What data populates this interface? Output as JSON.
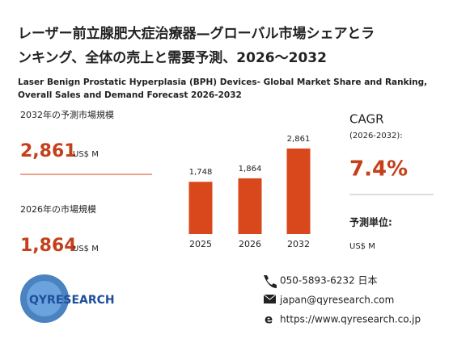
{
  "header": {
    "title_line1": "レーザー前立腺肥大症治療器—グローバル市場シェアとラ",
    "title_line2": "ンキング、全体の売上と需要予測、2026～2032",
    "subtitle_line1": "Laser Benign Prostatic Hyperplasia (BPH) Devices- Global Market Share and Ranking,",
    "subtitle_line2": "Overall Sales and Demand Forecast 2026-2032"
  },
  "left": {
    "forecast_label": "2032年の予測市場規模",
    "forecast_value": "2,861",
    "forecast_unit": "US$ M",
    "current_label": "2026年の市場規模",
    "current_value": "1,864",
    "current_unit": "US$ M"
  },
  "chart_data": {
    "type": "bar",
    "categories": [
      "2025",
      "2026",
      "2032"
    ],
    "values": [
      1748,
      1864,
      2861
    ],
    "value_labels": [
      "1,748",
      "1,864",
      "2,861"
    ],
    "color": "#d9481c"
  },
  "right": {
    "cagr_label": "CAGR",
    "cagr_period": "(2026-2032):",
    "cagr_value": "7.4%",
    "unit_label": "予測単位:",
    "unit_value": "US$ M"
  },
  "footer": {
    "logo": "QYRESEARCH",
    "phone": "050-5893-6232 日本",
    "email": "japan@qyresearch.com",
    "web": "https://www.qyresearch.co.jp"
  }
}
